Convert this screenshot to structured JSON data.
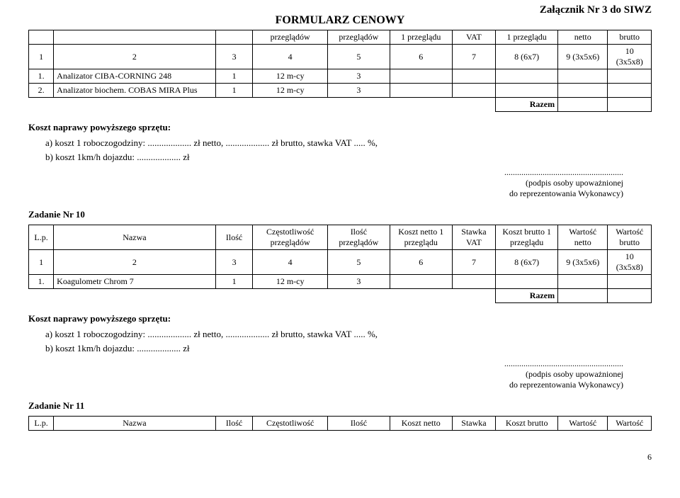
{
  "header": {
    "form_title": "FORMULARZ   CENOWY",
    "attachment": "Załącznik Nr 3 do SIWZ"
  },
  "top_table": {
    "header_cells": [
      "",
      "",
      "",
      "przeglądów",
      "przeglądów",
      "1 przeglądu",
      "VAT",
      "1 przeglądu",
      "netto",
      "brutto"
    ],
    "num_row": [
      "1",
      "2",
      "3",
      "4",
      "5",
      "6",
      "7",
      "8 (6x7)",
      "9 (3x5x6)",
      "10 (3x5x8)"
    ],
    "rows": [
      {
        "lp": "1.",
        "name": "Analizator CIBA-CORNING 248",
        "count": "1",
        "freq": "12 m-cy",
        "qty": "3"
      },
      {
        "lp": "2.",
        "name": "Analizator biochem. COBAS MIRA Plus",
        "count": "1",
        "freq": "12 m-cy",
        "qty": "3"
      }
    ],
    "razem": "Razem"
  },
  "repair": {
    "heading": "Koszt naprawy powyższego sprzętu:",
    "a": "a)  koszt 1 roboczogodziny: ................... zł netto, ................... zł brutto, stawka VAT ..... %,",
    "b": "b)  koszt 1km/h dojazdu: ................... zł"
  },
  "signature": {
    "dots": "........................................................",
    "line1": "(podpis osoby upoważnionej",
    "line2": "do reprezentowania Wykonawcy)"
  },
  "task10": {
    "title": "Zadanie Nr 10",
    "headers": {
      "lp": "L.p.",
      "name": "Nazwa",
      "count": "Ilość",
      "freq": "Częstotliwość przeglądów",
      "qty": "Ilość przeglądów",
      "net": "Koszt netto 1 przeglądu",
      "vat": "Stawka VAT",
      "gross": "Koszt brutto 1 przeglądu",
      "wnet": "Wartość netto",
      "wgross": "Wartość brutto"
    },
    "num_row": [
      "1",
      "2",
      "3",
      "4",
      "5",
      "6",
      "7",
      "8 (6x7)",
      "9 (3x5x6)",
      "10 (3x5x8)"
    ],
    "rows": [
      {
        "lp": "1.",
        "name": "Koagulometr Chrom 7",
        "count": "1",
        "freq": "12 m-cy",
        "qty": "3"
      }
    ],
    "razem": "Razem"
  },
  "task11": {
    "title": "Zadanie Nr 11",
    "headers": {
      "lp": "L.p.",
      "name": "Nazwa",
      "count": "Ilość",
      "freq": "Częstotliwość",
      "qty": "Ilość",
      "net": "Koszt netto",
      "vat": "Stawka",
      "gross": "Koszt brutto",
      "wnet": "Wartość",
      "wgross": "Wartość"
    }
  },
  "page_number": "6"
}
